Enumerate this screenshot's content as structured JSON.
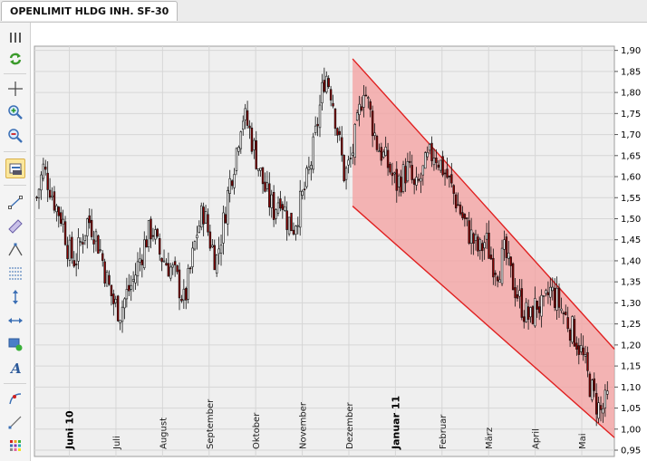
{
  "tab": {
    "title": "OPENLIMIT HLDG INH. SF-30"
  },
  "toolbar": {
    "items": [
      {
        "name": "columns-icon"
      },
      {
        "name": "refresh-icon"
      },
      {
        "name": "crosshair-icon"
      },
      {
        "name": "zoom-in-icon"
      },
      {
        "name": "zoom-out-icon"
      },
      {
        "name": "chart-settings-icon"
      },
      {
        "name": "trendline-icon"
      },
      {
        "name": "channel-icon"
      },
      {
        "name": "triangle-icon"
      },
      {
        "name": "fibonacci-icon"
      },
      {
        "name": "vertical-line-icon"
      },
      {
        "name": "horizontal-line-icon"
      },
      {
        "name": "rectangle-icon"
      },
      {
        "name": "text-icon"
      },
      {
        "name": "arc-icon"
      },
      {
        "name": "pen-icon"
      },
      {
        "name": "color-palette-icon"
      }
    ]
  },
  "colors": {
    "channel_fill": "#f4a4a4",
    "channel_line": "#e02020",
    "candle_down": "#8b0000",
    "candle_up": "#ffffff",
    "plot_bg": "#efefef"
  },
  "chart_data": {
    "type": "candlestick",
    "title": "",
    "ylim": [
      0.95,
      1.9
    ],
    "y_ticks": [
      "0,95",
      "1,00",
      "1,05",
      "1,10",
      "1,15",
      "1,20",
      "1,25",
      "1,30",
      "1,35",
      "1,40",
      "1,45",
      "1,50",
      "1,55",
      "1,60",
      "1,65",
      "1,70",
      "1,75",
      "1,80",
      "1,85",
      "1,90"
    ],
    "x_ticks": [
      {
        "label": "Juni 10",
        "month_index": 0,
        "major": true
      },
      {
        "label": "Juli",
        "month_index": 1,
        "major": false
      },
      {
        "label": "August",
        "month_index": 2,
        "major": false
      },
      {
        "label": "September",
        "month_index": 3,
        "major": false
      },
      {
        "label": "Oktober",
        "month_index": 4,
        "major": false
      },
      {
        "label": "November",
        "month_index": 5,
        "major": false
      },
      {
        "label": "Dezember",
        "month_index": 6,
        "major": false
      },
      {
        "label": "Januar 11",
        "month_index": 7,
        "major": true
      },
      {
        "label": "Februar",
        "month_index": 8,
        "major": false
      },
      {
        "label": "März",
        "month_index": 9,
        "major": false
      },
      {
        "label": "April",
        "month_index": 10,
        "major": false
      },
      {
        "label": "Mai",
        "month_index": 11,
        "major": false
      }
    ],
    "x_range_months": [
      -0.75,
      11.7
    ],
    "series": [
      {
        "values_close": [
          1.55,
          1.62,
          1.58,
          1.53,
          1.5,
          1.42,
          1.4,
          1.45,
          1.5,
          1.47,
          1.42,
          1.35,
          1.3,
          1.28,
          1.32,
          1.35,
          1.4,
          1.45,
          1.48,
          1.42,
          1.4,
          1.38,
          1.35,
          1.3,
          1.38,
          1.47,
          1.52,
          1.45,
          1.4,
          1.48,
          1.58,
          1.65,
          1.75,
          1.72,
          1.66,
          1.6,
          1.55,
          1.52,
          1.56,
          1.5,
          1.48,
          1.53,
          1.58,
          1.65,
          1.75,
          1.85,
          1.8,
          1.7,
          1.6,
          1.64,
          1.72,
          1.82,
          1.75,
          1.68,
          1.65,
          1.62,
          1.58,
          1.6,
          1.62,
          1.56,
          1.6,
          1.64,
          1.66,
          1.63,
          1.6,
          1.56,
          1.52,
          1.48,
          1.45,
          1.42,
          1.45,
          1.4,
          1.38,
          1.42,
          1.36,
          1.32,
          1.28,
          1.26,
          1.3,
          1.28,
          1.33,
          1.31,
          1.28,
          1.25,
          1.22,
          1.18,
          1.12,
          1.07,
          1.04,
          1.07
        ]
      }
    ],
    "channel": {
      "upper": [
        {
          "x": 6.08,
          "y": 1.88
        },
        {
          "x": 11.7,
          "y": 1.19
        }
      ],
      "lower": [
        {
          "x": 6.08,
          "y": 1.53
        },
        {
          "x": 11.7,
          "y": 0.98
        }
      ]
    },
    "grid": true,
    "y_axis_side": "right"
  }
}
